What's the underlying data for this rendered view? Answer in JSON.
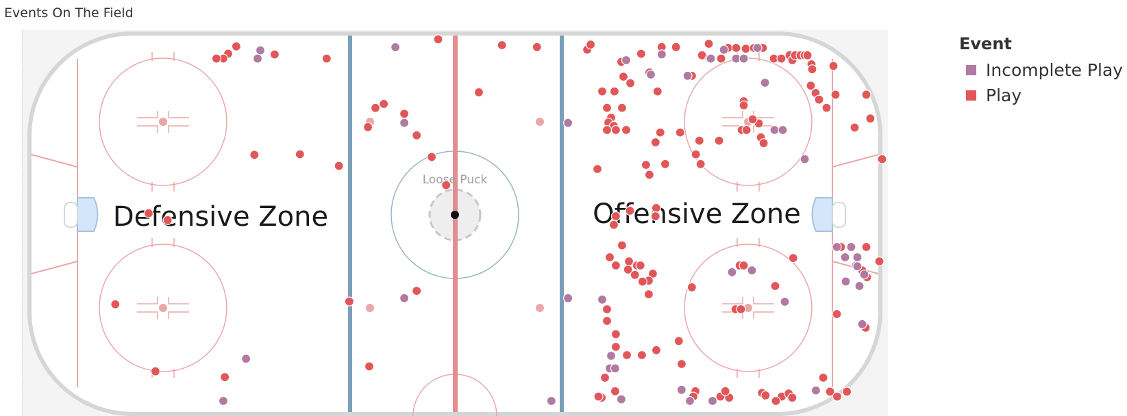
{
  "title": "Events On The Field",
  "legend": {
    "title": "Event",
    "items": [
      {
        "label": "Incomplete Play",
        "color": "#b07aa1"
      },
      {
        "label": "Play",
        "color": "#e15759"
      }
    ]
  },
  "rink": {
    "zones": {
      "defensive": "Defensive Zone",
      "offensive": "Offensive Zone"
    },
    "center_label": "Loose Puck"
  },
  "chart_data": {
    "type": "scatter",
    "title": "Events On The Field",
    "xlabel": "",
    "ylabel": "",
    "xlim": [
      0,
      1
    ],
    "ylim": [
      0,
      1
    ],
    "series": [
      {
        "name": "Play",
        "color": "#e15759",
        "points": [
          [
            0.2417,
            0.0296
          ],
          [
            0.2321,
            0.0494
          ],
          [
            0.2265,
            0.0629
          ],
          [
            0.2184,
            0.0629
          ],
          [
            0.2867,
            0.0516
          ],
          [
            0.3476,
            0.0629
          ],
          [
            0.4784,
            0.0101
          ],
          [
            0.5532,
            0.0263
          ],
          [
            0.5942,
            0.0314
          ],
          [
            0.3163,
            0.3249
          ],
          [
            0.362,
            0.3565
          ],
          [
            0.1612,
            0.5052
          ],
          [
            0.3742,
            0.7278
          ],
          [
            0.4532,
            0.6986
          ],
          [
            0.2283,
            0.9348
          ],
          [
            0.1469,
            0.919
          ],
          [
            0.0998,
            0.7356
          ],
          [
            0.1389,
            0.4863
          ],
          [
            0.2629,
            0.3264
          ],
          [
            0.5261,
            0.1552
          ],
          [
            0.4146,
            0.1871
          ],
          [
            0.4386,
            0.2141
          ],
          [
            0.4048,
            0.1981
          ],
          [
            0.3961,
            0.2505
          ],
          [
            0.4532,
            0.273
          ],
          [
            0.4708,
            0.3322
          ],
          [
            0.4877,
            0.4094
          ],
          [
            0.3976,
            0.9055
          ],
          [
            0.6531,
            0.0386
          ],
          [
            0.6571,
            0.0247
          ],
          [
            0.6931,
            0.0719
          ],
          [
            0.7163,
            0.0499
          ],
          [
            0.7404,
            0.0314
          ],
          [
            0.7572,
            0.0314
          ],
          [
            0.7877,
            0.0539
          ],
          [
            0.7965,
            0.0629
          ],
          [
            0.7957,
            0.0224
          ],
          [
            0.8101,
            0.0629
          ],
          [
            0.8182,
            0.0337
          ],
          [
            0.8278,
            0.0337
          ],
          [
            0.839,
            0.0359
          ],
          [
            0.8487,
            0.0337
          ],
          [
            0.859,
            0.0337
          ],
          [
            0.8719,
            0.0629
          ],
          [
            0.8807,
            0.0629
          ],
          [
            0.8904,
            0.0539
          ],
          [
            0.8936,
            0.0674
          ],
          [
            0.8968,
            0.0539
          ],
          [
            0.9032,
            0.0539
          ],
          [
            0.9081,
            0.0539
          ],
          [
            0.9113,
            0.0539
          ],
          [
            0.9161,
            0.0786
          ],
          [
            0.9169,
            0.0921
          ],
          [
            0.9418,
            0.0831
          ],
          [
            0.6956,
            0.1124
          ],
          [
            0.726,
            0.1011
          ],
          [
            0.7037,
            0.1303
          ],
          [
            0.7758,
            0.1101
          ],
          [
            0.6707,
            0.1528
          ],
          [
            0.6851,
            0.1528
          ],
          [
            0.6763,
            0.1978
          ],
          [
            0.6939,
            0.1978
          ],
          [
            0.6811,
            0.2247
          ],
          [
            0.6779,
            0.2382
          ],
          [
            0.6843,
            0.2472
          ],
          [
            0.6763,
            0.2584
          ],
          [
            0.6867,
            0.2584
          ],
          [
            0.6988,
            0.2584
          ],
          [
            0.7356,
            0.1528
          ],
          [
            0.7388,
            0.2652
          ],
          [
            0.7332,
            0.2921
          ],
          [
            0.7621,
            0.2652
          ],
          [
            0.7846,
            0.2876
          ],
          [
            0.7805,
            0.3251
          ],
          [
            0.7861,
            0.3517
          ],
          [
            0.722,
            0.3539
          ],
          [
            0.7445,
            0.3517
          ],
          [
            0.726,
            0.3809
          ],
          [
            0.6651,
            0.3652
          ],
          [
            0.8077,
            0.2876
          ],
          [
            0.8342,
            0.2584
          ],
          [
            0.8399,
            0.2584
          ],
          [
            0.8567,
            0.2787
          ],
          [
            0.8599,
            0.2944
          ],
          [
            0.8543,
            0.2404
          ],
          [
            0.8471,
            0.2292
          ],
          [
            0.8366,
            0.1798
          ],
          [
            0.8366,
            0.191
          ],
          [
            0.9153,
            0.1371
          ],
          [
            0.9209,
            0.1573
          ],
          [
            0.9249,
            0.1753
          ],
          [
            0.9337,
            0.1978
          ],
          [
            0.9442,
            0.1618
          ],
          [
            0.9803,
            0.1618
          ],
          [
            0.9851,
            0.227
          ],
          [
            0.9667,
            0.2517
          ],
          [
            0.9988,
            0.3382
          ],
          [
            0.734,
            0.4719
          ],
          [
            0.7332,
            0.4944
          ],
          [
            0.6867,
            0.4944
          ],
          [
            0.6843,
            0.518
          ],
          [
            0.6939,
            0.5742
          ],
          [
            0.702,
            0.618
          ],
          [
            0.6795,
            0.6068
          ],
          [
            0.6867,
            0.6292
          ],
          [
            0.701,
            0.6405
          ],
          [
            0.7115,
            0.6292
          ],
          [
            0.7155,
            0.6292
          ],
          [
            0.709,
            0.6551
          ],
          [
            0.73,
            0.6517
          ],
          [
            0.7252,
            0.6708
          ],
          [
            0.7179,
            0.6735
          ],
          [
            0.7252,
            0.7081
          ],
          [
            0.7758,
            0.689
          ],
          [
            0.8946,
            0.609
          ],
          [
            0.8318,
            0.6292
          ],
          [
            0.8366,
            0.6292
          ],
          [
            0.8735,
            0.6854
          ],
          [
            0.827,
            0.7491
          ],
          [
            0.8334,
            0.7491
          ],
          [
            0.9458,
            0.7622
          ],
          [
            0.9506,
            0.5787
          ],
          [
            0.9803,
            0.5787
          ],
          [
            0.9956,
            0.618
          ],
          [
            0.9755,
            0.6427
          ],
          [
            0.9811,
            0.6614
          ],
          [
            0.9795,
            0.7996
          ],
          [
            0.6763,
            0.7491
          ],
          [
            0.6763,
            0.7809
          ],
          [
            0.6867,
            0.8172
          ],
          [
            0.6867,
            0.852
          ],
          [
            0.6996,
            0.8745
          ],
          [
            0.7341,
            0.861
          ],
          [
            0.7172,
            0.8745
          ],
          [
            0.7605,
            0.8359
          ],
          [
            0.7638,
            0.8989
          ],
          [
            0.6739,
            0.9363
          ],
          [
            0.6859,
            0.9734
          ],
          [
            0.67,
            0.991
          ],
          [
            0.78,
            0.9734
          ],
          [
            0.7775,
            0.988
          ],
          [
            0.8092,
            0.988
          ],
          [
            0.8195,
            0.991
          ],
          [
            0.858,
            0.978
          ],
          [
            0.8622,
            0.9848
          ],
          [
            0.8812,
            0.988
          ],
          [
            0.8893,
            0.9796
          ],
          [
            0.8935,
            0.991
          ],
          [
            0.8743,
            1.0
          ],
          [
            0.9298,
            0.9363
          ],
          [
            0.9378,
            0.9745
          ],
          [
            0.9461,
            0.988
          ],
          [
            0.9575,
            0.9745
          ],
          [
            0.815,
            0.9734
          ],
          [
            0.6663,
            0.988
          ],
          [
            0.7032,
            0.4794
          ]
        ]
      },
      {
        "name": "Incomplete Play",
        "color": "#b07aa1",
        "points": [
          [
            0.2699,
            0.0404
          ],
          [
            0.2667,
            0.0629
          ],
          [
            0.4282,
            0.0318
          ],
          [
            0.4386,
            0.2389
          ],
          [
            0.6306,
            0.2389
          ],
          [
            0.4386,
            0.7188
          ],
          [
            0.6306,
            0.7188
          ],
          [
            0.2531,
            0.8844
          ],
          [
            0.6988,
            0.0674
          ],
          [
            0.7277,
            0.1067
          ],
          [
            0.7708,
            0.1101
          ],
          [
            0.7405,
            0.0513
          ],
          [
            0.7981,
            0.0629
          ],
          [
            0.8133,
            0.0388
          ],
          [
            0.8278,
            0.0629
          ],
          [
            0.8366,
            0.0629
          ],
          [
            0.8526,
            0.0337
          ],
          [
            0.8615,
            0.129
          ],
          [
            0.8727,
            0.2584
          ],
          [
            0.8823,
            0.2584
          ],
          [
            0.9081,
            0.3382
          ],
          [
            0.9458,
            0.5787
          ],
          [
            0.9626,
            0.5787
          ],
          [
            0.9554,
            0.6067
          ],
          [
            0.9683,
            0.6292
          ],
          [
            0.9699,
            0.6067
          ],
          [
            0.9698,
            0.6315
          ],
          [
            0.9779,
            0.654
          ],
          [
            0.9755,
            0.7899
          ],
          [
            0.9723,
            0.6854
          ],
          [
            0.9562,
            0.673
          ],
          [
            0.8229,
            0.6476
          ],
          [
            0.8462,
            0.6427
          ],
          [
            0.8847,
            0.7285
          ],
          [
            0.6707,
            0.7225
          ],
          [
            0.6811,
            0.8764
          ],
          [
            0.6795,
            0.9109
          ],
          [
            0.6859,
            0.9109
          ],
          [
            0.6931,
            0.9955
          ],
          [
            0.7637,
            0.9696
          ],
          [
            0.7735,
            1.0
          ],
          [
            0.8,
            1.0
          ],
          [
            0.9212,
            0.9711
          ],
          [
            0.2265,
            1.0
          ],
          [
            0.6111,
            1.0
          ]
        ]
      }
    ]
  }
}
